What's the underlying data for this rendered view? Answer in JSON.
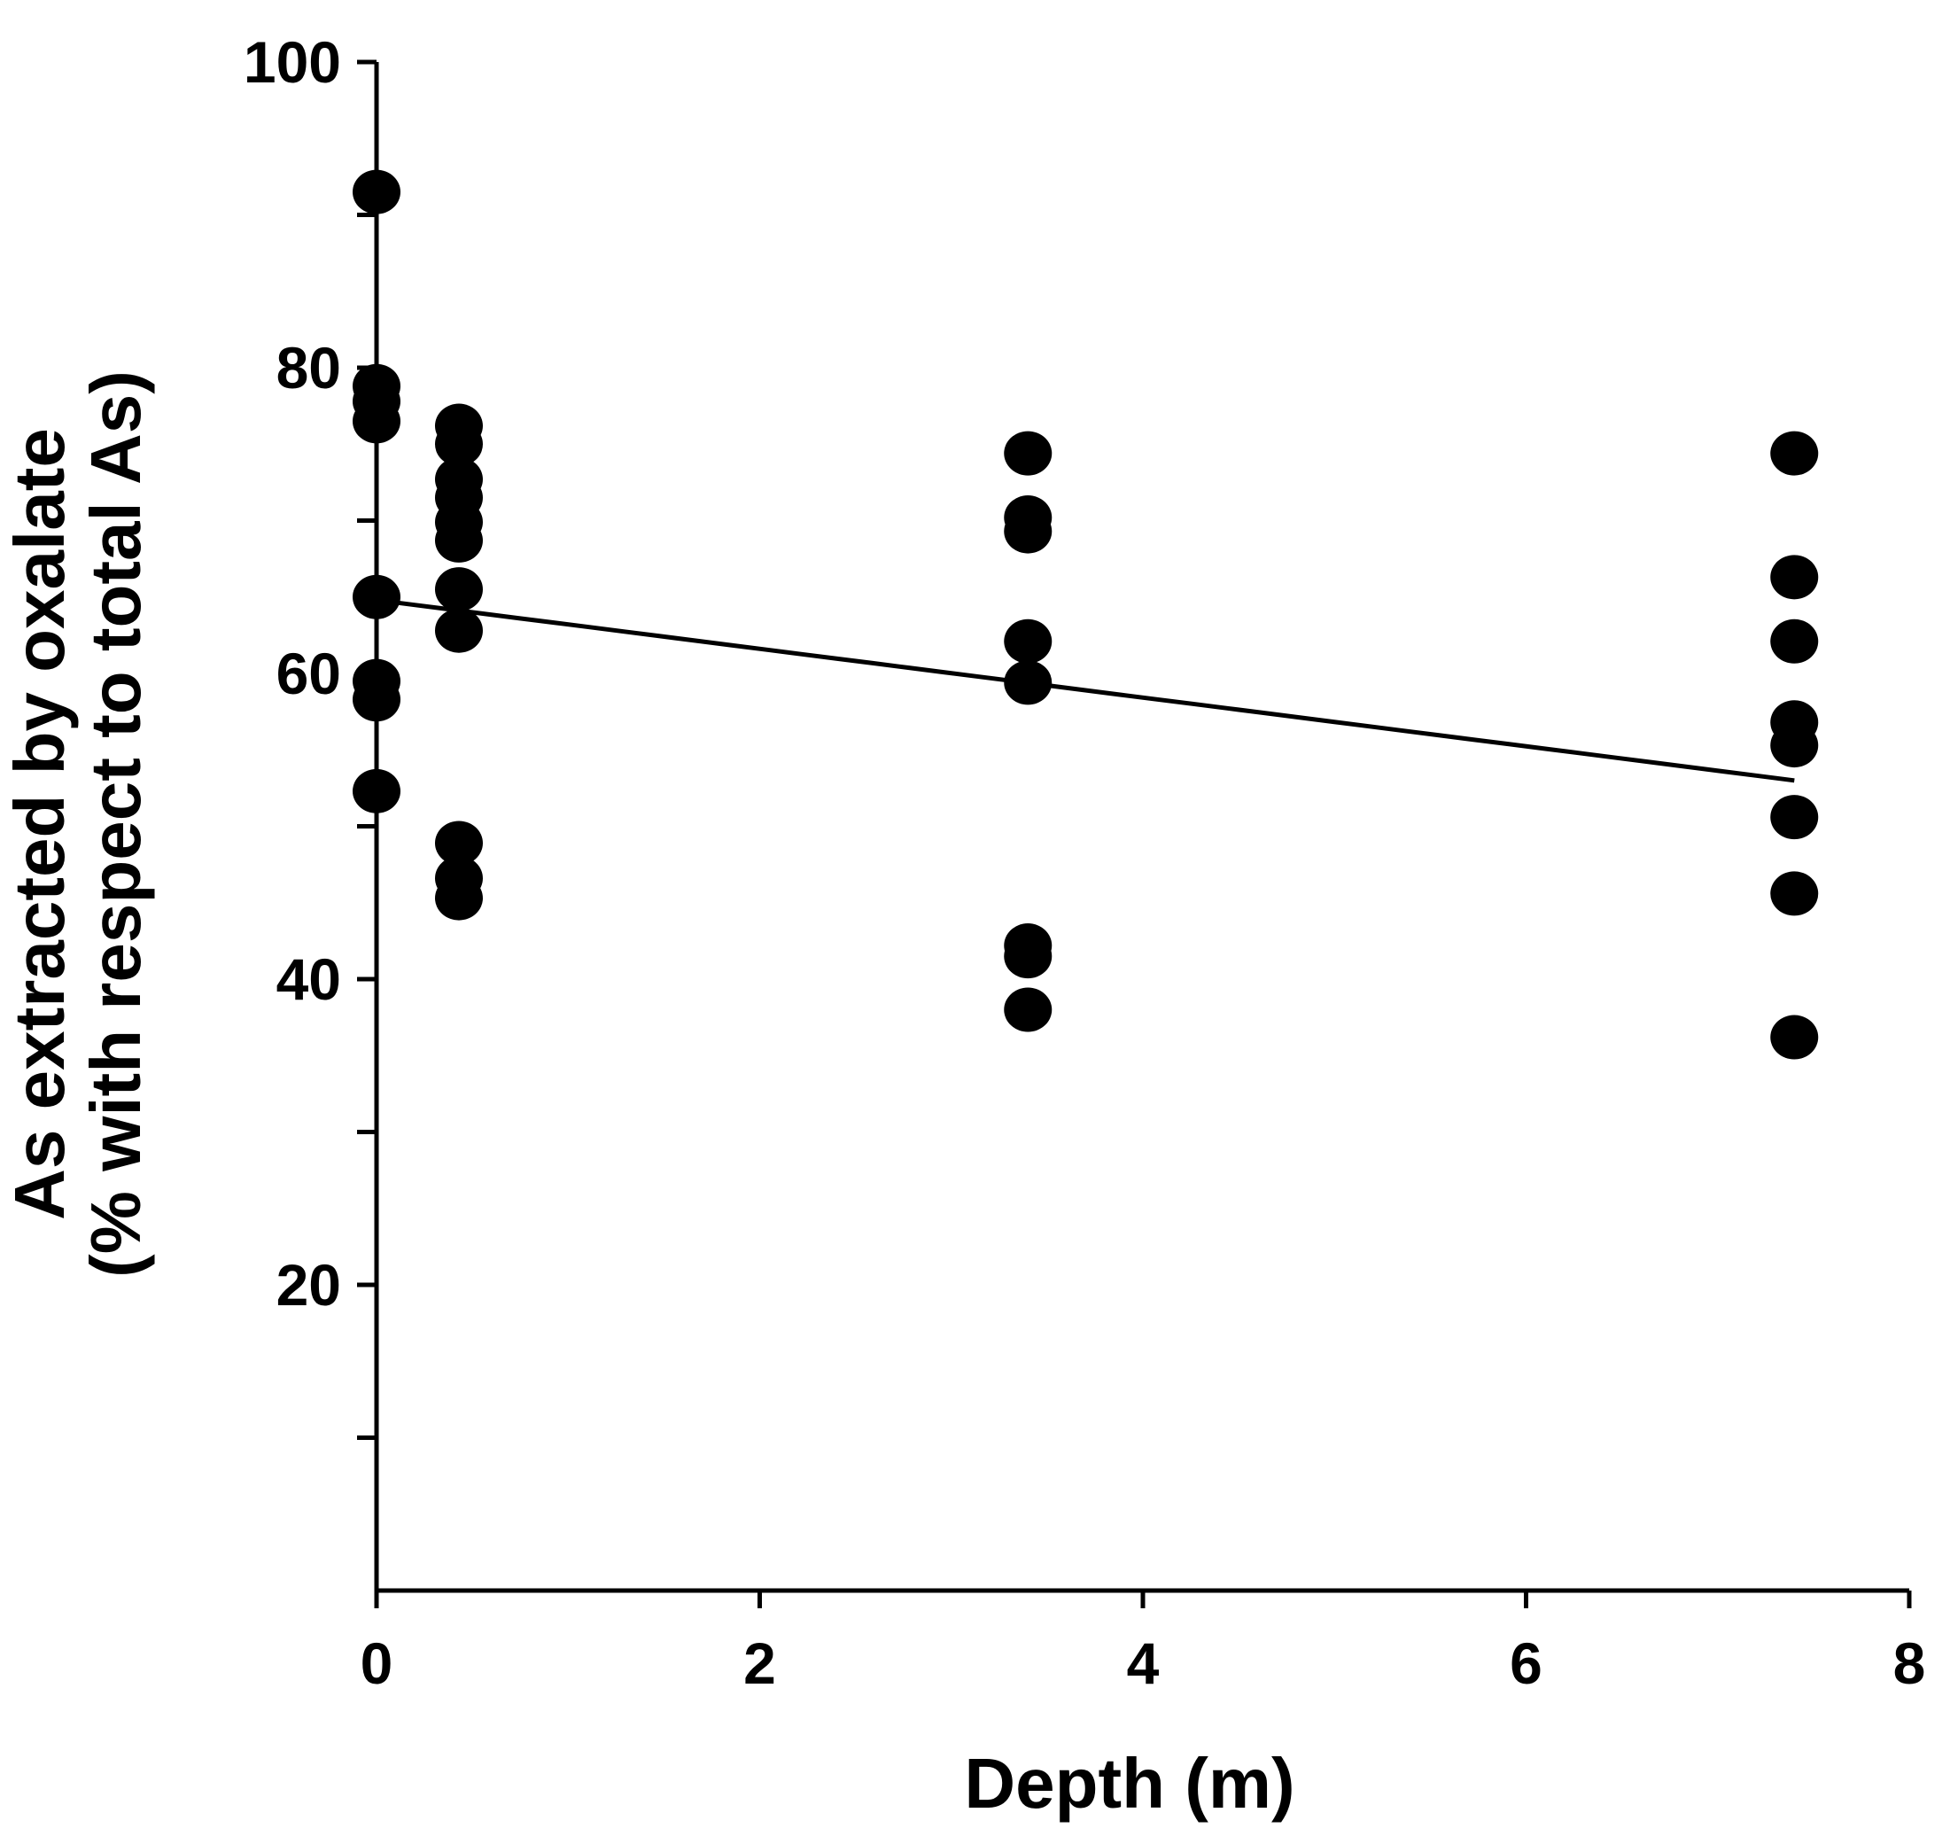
{
  "chart_data": {
    "type": "scatter",
    "title": "",
    "xlabel": "Depth (m)",
    "ylabel_line1": "As extracted by oxalate",
    "ylabel_line2": "(% with respect to total As)",
    "xlim": [
      0,
      8
    ],
    "ylim": [
      0,
      100
    ],
    "x_ticks": [
      0,
      2,
      4,
      6,
      8
    ],
    "y_ticks": [
      20,
      40,
      60,
      80,
      100
    ],
    "y_minor_ticks": [
      10,
      30,
      50,
      70,
      90
    ],
    "grid": false,
    "series": [
      {
        "name": "samples",
        "points": [
          {
            "x": 0,
            "y": 91.5
          },
          {
            "x": 0,
            "y": 78.8
          },
          {
            "x": 0,
            "y": 77.8
          },
          {
            "x": 0,
            "y": 76.5
          },
          {
            "x": 0,
            "y": 65
          },
          {
            "x": 0,
            "y": 59.5
          },
          {
            "x": 0,
            "y": 58.3
          },
          {
            "x": 0,
            "y": 52.3
          },
          {
            "x": 0.43,
            "y": 76.2
          },
          {
            "x": 0.43,
            "y": 75
          },
          {
            "x": 0.43,
            "y": 72.7
          },
          {
            "x": 0.43,
            "y": 71.5
          },
          {
            "x": 0.43,
            "y": 69.9
          },
          {
            "x": 0.43,
            "y": 68.7
          },
          {
            "x": 0.43,
            "y": 65.5
          },
          {
            "x": 0.43,
            "y": 62.8
          },
          {
            "x": 0.43,
            "y": 48.9
          },
          {
            "x": 0.43,
            "y": 46.6
          },
          {
            "x": 0.43,
            "y": 45.3
          },
          {
            "x": 3.4,
            "y": 74.4
          },
          {
            "x": 3.4,
            "y": 70.2
          },
          {
            "x": 3.4,
            "y": 69.3
          },
          {
            "x": 3.4,
            "y": 62.1
          },
          {
            "x": 3.4,
            "y": 59.4
          },
          {
            "x": 3.4,
            "y": 42.2
          },
          {
            "x": 3.4,
            "y": 41.5
          },
          {
            "x": 3.4,
            "y": 38
          },
          {
            "x": 7.4,
            "y": 74.4
          },
          {
            "x": 7.4,
            "y": 66.3
          },
          {
            "x": 7.4,
            "y": 62.1
          },
          {
            "x": 7.4,
            "y": 56.8
          },
          {
            "x": 7.4,
            "y": 55.3
          },
          {
            "x": 7.4,
            "y": 50.6
          },
          {
            "x": 7.4,
            "y": 45.6
          },
          {
            "x": 7.4,
            "y": 36.2
          }
        ]
      }
    ],
    "trendline": {
      "x": [
        0,
        7.4
      ],
      "y": [
        64.8,
        53.0
      ]
    }
  }
}
